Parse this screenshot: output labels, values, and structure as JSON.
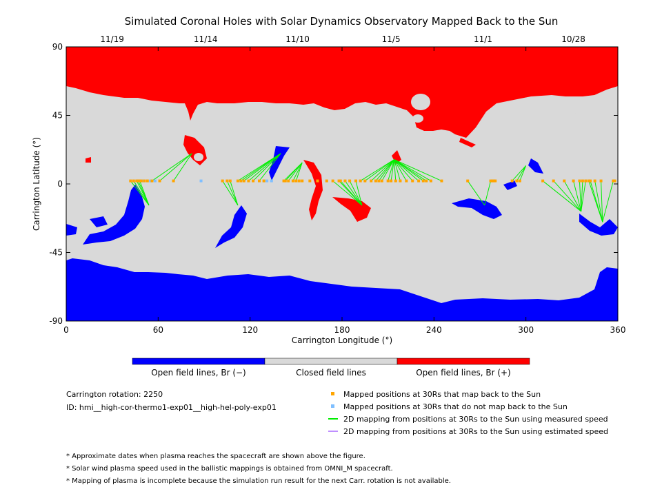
{
  "chart_data": {
    "type": "map",
    "title": "Simulated Coronal Holes with Solar Dynamics Observatory Mapped Back to the Sun",
    "xlabel": "Carrington Longitude (°)",
    "ylabel": "Carrington Latitude (°)",
    "xlim": [
      0,
      360
    ],
    "ylim": [
      -90,
      90
    ],
    "x_ticks": [
      "0",
      "60",
      "120",
      "180",
      "240",
      "300",
      "360"
    ],
    "y_ticks": [
      "90",
      "45",
      "0",
      "-45",
      "-90"
    ],
    "top_date_ticks": [
      {
        "label": "11/19",
        "lon": 30
      },
      {
        "label": "11/14",
        "lon": 91
      },
      {
        "label": "11/10",
        "lon": 151
      },
      {
        "label": "11/5",
        "lon": 212
      },
      {
        "label": "11/1",
        "lon": 272
      },
      {
        "label": "10/28",
        "lon": 331
      }
    ],
    "colors": {
      "open_negative": "#0000ff",
      "closed": "#d9d9d9",
      "open_positive": "#ff0000",
      "mapped": "#ffa500",
      "not_mapped": "#7fbfff",
      "measured_line": "#00ee00",
      "estimated_line": "#bf8fff"
    },
    "colorbar_labels": [
      "Open field lines, Br (−)",
      "Closed field lines",
      "Open field lines, Br (+)"
    ],
    "mapped_points_lon": [
      42,
      44,
      46,
      47,
      48,
      49,
      51,
      53,
      56,
      61,
      70,
      102,
      105,
      107,
      112,
      114,
      116,
      119,
      122,
      126,
      129,
      142,
      143,
      145,
      148,
      150,
      152,
      154,
      159,
      164,
      170,
      174,
      178,
      179,
      182,
      185,
      189,
      192,
      195,
      199,
      202,
      204,
      206,
      210,
      212,
      215,
      218,
      222,
      226,
      230,
      233,
      235,
      238,
      245,
      262,
      277,
      278,
      279,
      280,
      291,
      294,
      296,
      311,
      318,
      325,
      331,
      335,
      337,
      339,
      341,
      342,
      345,
      349,
      357,
      358
    ],
    "not_mapped_points_lon": [
      50,
      55,
      58,
      88,
      129,
      131,
      134
    ],
    "mapped_lat": 2,
    "footpoints": [
      {
        "lon": 82,
        "lat": 20,
        "from": [
          56,
          61,
          70
        ]
      },
      {
        "lon": 54,
        "lat": -14,
        "from": [
          42,
          44,
          46,
          47,
          48
        ]
      },
      {
        "lon": 112,
        "lat": -14,
        "from": [
          102,
          105,
          107
        ]
      },
      {
        "lon": 140,
        "lat": 20,
        "from": [
          112,
          114,
          116,
          119,
          122,
          126
        ]
      },
      {
        "lon": 154,
        "lat": 14,
        "from": [
          142,
          143,
          145,
          148,
          150
        ]
      },
      {
        "lon": 193,
        "lat": -14,
        "from": [
          174,
          178,
          179,
          182,
          185,
          189
        ]
      },
      {
        "lon": 214,
        "lat": 16,
        "from": [
          192,
          195,
          199,
          202,
          204,
          206,
          210,
          212,
          215,
          218,
          222,
          226,
          230,
          233,
          235,
          238,
          245
        ]
      },
      {
        "lon": 273,
        "lat": -14,
        "from": [
          262,
          277
        ]
      },
      {
        "lon": 300,
        "lat": 12,
        "from": [
          291,
          294,
          296
        ]
      },
      {
        "lon": 336,
        "lat": -18,
        "from": [
          311,
          318,
          325,
          331,
          335,
          337,
          339
        ]
      },
      {
        "lon": 350,
        "lat": -25,
        "from": [
          341,
          342,
          345,
          349,
          357
        ]
      }
    ]
  },
  "info": {
    "rotation": "Carrington rotation: 2250",
    "id": "ID: hmi__high-cor-thermo1-exp01__high-hel-poly-exp01"
  },
  "legend": [
    {
      "label": "Mapped positions at 30Rs that map back to the Sun",
      "kind": "square",
      "color_key": "mapped"
    },
    {
      "label": "Mapped positions at 30Rs that do not map back to the Sun",
      "kind": "square",
      "color_key": "not_mapped"
    },
    {
      "label": "2D mapping from positions at 30Rs to the Sun using measured speed",
      "kind": "line",
      "color_key": "measured_line"
    },
    {
      "label": "2D mapping from positions at 30Rs to the Sun using estimated speed",
      "kind": "line",
      "color_key": "estimated_line"
    }
  ],
  "notes": [
    "* Approximate dates when plasma reaches the spacecraft are shown above the figure.",
    "* Solar wind plasma speed used in the ballistic mappings is obtained from OMNI_M spacecraft.",
    "* Mapping of plasma is incomplete because the simulation run result for the next Carr. rotation is not available."
  ]
}
